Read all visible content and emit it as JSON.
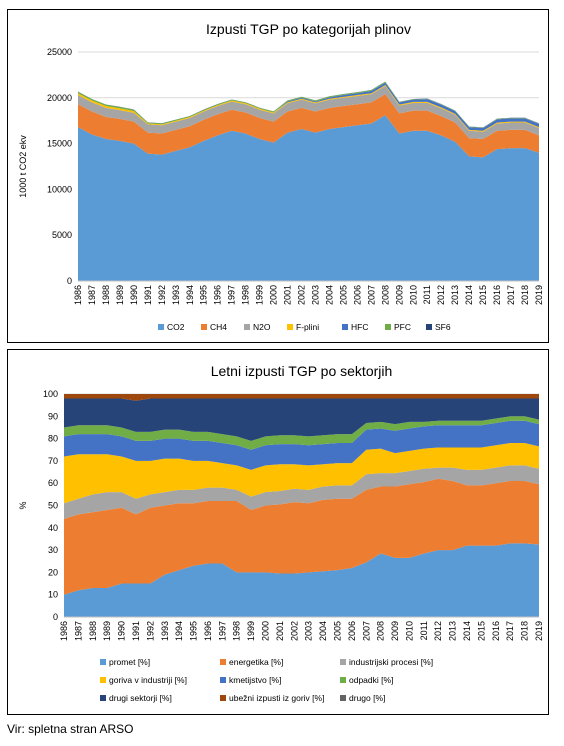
{
  "source_note": "Vir: spletna stran ARSO",
  "chart_data": [
    {
      "type": "area",
      "stacked": true,
      "title": "Izpusti TGP po kategorijah plinov",
      "xlabel": "",
      "ylabel": "1000 t CO2 ekv",
      "ylim": [
        0,
        25000
      ],
      "yticks": [
        0,
        5000,
        10000,
        15000,
        20000,
        25000
      ],
      "grid": true,
      "legend_position": "bottom",
      "x": [
        1986,
        1987,
        1988,
        1989,
        1990,
        1991,
        1992,
        1993,
        1994,
        1995,
        1996,
        1997,
        1998,
        1999,
        2000,
        2001,
        2002,
        2003,
        2004,
        2005,
        2006,
        2007,
        2008,
        2009,
        2010,
        2011,
        2012,
        2013,
        2014,
        2015,
        2016,
        2017,
        2018,
        2019
      ],
      "series": [
        {
          "name": "CO2",
          "color": "#5b9bd5",
          "values": [
            16800,
            16000,
            15500,
            15300,
            15000,
            13900,
            13800,
            14200,
            14600,
            15300,
            15900,
            16400,
            16100,
            15500,
            15100,
            16200,
            16600,
            16200,
            16600,
            16800,
            17000,
            17200,
            18100,
            16100,
            16400,
            16400,
            15900,
            15200,
            13600,
            13500,
            14400,
            14500,
            14500,
            14000
          ]
        },
        {
          "name": "CH4",
          "color": "#ed7d31",
          "values": [
            2500,
            2500,
            2400,
            2400,
            2400,
            2300,
            2300,
            2300,
            2300,
            2300,
            2300,
            2300,
            2300,
            2300,
            2300,
            2300,
            2300,
            2300,
            2300,
            2300,
            2300,
            2300,
            2300,
            2200,
            2200,
            2200,
            2100,
            2100,
            2000,
            2000,
            2000,
            2000,
            2000,
            1900
          ]
        },
        {
          "name": "N2O",
          "color": "#a5a5a5",
          "values": [
            1000,
            1000,
            1000,
            950,
            950,
            900,
            900,
            900,
            900,
            900,
            900,
            900,
            900,
            900,
            900,
            900,
            900,
            900,
            900,
            900,
            900,
            900,
            900,
            850,
            850,
            850,
            850,
            850,
            800,
            800,
            800,
            800,
            800,
            800
          ]
        },
        {
          "name": "F-plini",
          "color": "#ffc000",
          "values": [
            200,
            200,
            200,
            200,
            200,
            100,
            100,
            100,
            100,
            100,
            100,
            100,
            100,
            100,
            100,
            100,
            100,
            100,
            100,
            100,
            100,
            100,
            100,
            100,
            100,
            100,
            100,
            100,
            100,
            100,
            100,
            100,
            100,
            100
          ]
        },
        {
          "name": "HFC",
          "color": "#4472c4",
          "values": [
            0,
            0,
            0,
            0,
            0,
            0,
            0,
            0,
            0,
            0,
            0,
            0,
            0,
            0,
            0,
            100,
            100,
            100,
            150,
            200,
            200,
            250,
            250,
            250,
            250,
            300,
            300,
            300,
            300,
            300,
            350,
            350,
            350,
            350
          ]
        },
        {
          "name": "PFC",
          "color": "#70ad47",
          "values": [
            150,
            150,
            150,
            150,
            150,
            100,
            100,
            100,
            100,
            100,
            100,
            100,
            100,
            100,
            100,
            100,
            100,
            100,
            100,
            100,
            100,
            100,
            100,
            50,
            50,
            50,
            50,
            50,
            50,
            50,
            50,
            50,
            50,
            50
          ]
        },
        {
          "name": "SF6",
          "color": "#264478",
          "values": [
            20,
            20,
            20,
            20,
            20,
            20,
            20,
            20,
            20,
            20,
            20,
            20,
            20,
            20,
            20,
            20,
            20,
            20,
            20,
            20,
            20,
            20,
            20,
            20,
            20,
            20,
            20,
            20,
            20,
            20,
            20,
            20,
            20,
            20
          ]
        }
      ]
    },
    {
      "type": "area",
      "stacked": true,
      "title": "Letni izpusti TGP po sektorjih",
      "xlabel": "",
      "ylabel": "%",
      "ylim": [
        0,
        100
      ],
      "yticks": [
        0,
        10,
        20,
        30,
        40,
        50,
        60,
        70,
        80,
        90,
        100
      ],
      "grid": true,
      "legend_position": "bottom",
      "x": [
        1986,
        1987,
        1988,
        1989,
        1990,
        1991,
        1992,
        1993,
        1994,
        1995,
        1996,
        1997,
        1998,
        1999,
        2000,
        2001,
        2002,
        2003,
        2004,
        2005,
        2006,
        2007,
        2008,
        2009,
        2010,
        2011,
        2012,
        2013,
        2014,
        2015,
        2016,
        2017,
        2018,
        2019
      ],
      "series": [
        {
          "name": "promet [%]",
          "color": "#5b9bd5",
          "values": [
            10,
            12,
            13,
            13,
            15,
            15,
            15,
            19,
            21,
            23,
            24,
            24,
            20,
            20,
            20,
            19.5,
            19.5,
            20,
            20.5,
            21,
            22,
            24.5,
            28.5,
            26.5,
            26.5,
            28.5,
            30,
            30,
            32,
            32,
            32,
            33,
            33,
            32.5
          ]
        },
        {
          "name": "energetika [%]",
          "color": "#ed7d31",
          "values": [
            34,
            34,
            34,
            35,
            34,
            31,
            34,
            31,
            30,
            28,
            28,
            28,
            32,
            28,
            30,
            31,
            32,
            31,
            32,
            32,
            31,
            32.5,
            30,
            32,
            33,
            32,
            32,
            31,
            27,
            27,
            28,
            28,
            28,
            27
          ]
        },
        {
          "name": "industrijski procesi [%]",
          "color": "#a5a5a5",
          "values": [
            7,
            7,
            8,
            8,
            7,
            7,
            6,
            6,
            6,
            6,
            6,
            6,
            5,
            6,
            6,
            6,
            6,
            6,
            6,
            6,
            6,
            7,
            6,
            6,
            6,
            6,
            5,
            6,
            7,
            7,
            7,
            7,
            7,
            7
          ]
        },
        {
          "name": "goriva v industriji [%]",
          "color": "#ffc000",
          "values": [
            21,
            20,
            18,
            17,
            16,
            17,
            15,
            15,
            14,
            13,
            12,
            11,
            11,
            12,
            12,
            12,
            11,
            11,
            10,
            10,
            10,
            11,
            11,
            9,
            9,
            9,
            9,
            9,
            10,
            10,
            10,
            10,
            10,
            10
          ]
        },
        {
          "name": "kmetijstvo [%]",
          "color": "#4472c4",
          "values": [
            9,
            9,
            9,
            9,
            9,
            9,
            9,
            9,
            9,
            9,
            9,
            9,
            9,
            9,
            9,
            9,
            9,
            9,
            9,
            9,
            9,
            9,
            9,
            10,
            10,
            10,
            10,
            10,
            10,
            10,
            10,
            10,
            10,
            10
          ]
        },
        {
          "name": "odpadki [%]",
          "color": "#70ad47",
          "values": [
            4,
            4,
            4,
            4,
            4,
            4,
            4,
            4,
            4,
            4,
            4,
            4,
            4,
            4,
            4,
            4,
            4,
            4,
            4,
            4,
            4,
            3,
            3,
            3,
            3,
            2,
            2,
            2,
            2,
            2,
            2,
            2,
            2,
            2
          ]
        },
        {
          "name": "drugi sektorji [%]",
          "color": "#264478",
          "values": [
            13,
            12,
            12,
            12,
            13,
            14,
            15,
            14,
            14,
            15,
            15,
            16,
            17,
            19,
            17,
            16.5,
            16.5,
            17,
            16.5,
            16,
            16,
            11,
            10.5,
            11.5,
            10.5,
            10.5,
            10,
            10,
            10,
            10,
            9,
            8,
            8,
            9.5
          ]
        },
        {
          "name": "ubežni izpusti iz goriv [%]",
          "color": "#9e480e",
          "values": [
            2,
            2,
            2,
            2,
            2,
            3,
            2,
            2,
            2,
            2,
            2,
            2,
            2,
            2,
            2,
            2,
            2,
            2,
            2,
            2,
            2,
            2,
            2,
            2,
            2,
            2,
            2,
            2,
            2,
            2,
            2,
            2,
            2,
            2
          ]
        },
        {
          "name": "drugo [%]",
          "color": "#636363",
          "values": [
            0,
            0,
            0,
            0,
            0,
            0,
            0,
            0,
            0,
            0,
            0,
            0,
            0,
            0,
            0,
            0,
            0,
            0,
            0,
            0,
            0,
            0,
            0,
            0,
            0,
            0,
            0,
            0,
            0,
            0,
            0,
            0,
            0,
            0
          ]
        }
      ]
    }
  ]
}
